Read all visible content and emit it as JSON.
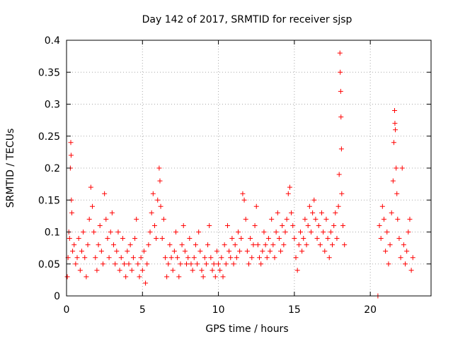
{
  "colors": {
    "series": "#ff0000",
    "grid": "#a8a8a8",
    "axis": "#000000"
  },
  "chart_data": {
    "type": "scatter",
    "title": "Day 142 of 2017, SRMTID for receiver sjsp",
    "xlabel": "GPS time / hours",
    "ylabel": "SRMTID / TECUs",
    "xlim": [
      0,
      24
    ],
    "ylim": [
      0,
      0.4
    ],
    "grid": true,
    "marker": "+",
    "xticks": [
      0,
      5,
      10,
      15,
      20
    ],
    "xtick_labels": [
      "0",
      "5",
      "10",
      "15",
      "20"
    ],
    "yticks": [
      0,
      0.05,
      0.1,
      0.15,
      0.2,
      0.25,
      0.3,
      0.35,
      0.4
    ],
    "ytick_labels": [
      "0",
      "0.05",
      "0.1",
      "0.15",
      "0.2",
      "0.25",
      "0.3",
      "0.35",
      "0.4"
    ],
    "series": [
      {
        "name": "SRMTID",
        "points": [
          [
            0.05,
            0.03
          ],
          [
            0.1,
            0.06
          ],
          [
            0.15,
            0.1
          ],
          [
            0.2,
            0.09
          ],
          [
            0.25,
            0.2
          ],
          [
            0.28,
            0.24
          ],
          [
            0.3,
            0.22
          ],
          [
            0.32,
            0.15
          ],
          [
            0.35,
            0.13
          ],
          [
            0.4,
            0.07
          ],
          [
            0.5,
            0.08
          ],
          [
            0.6,
            0.05
          ],
          [
            0.7,
            0.06
          ],
          [
            0.8,
            0.09
          ],
          [
            0.9,
            0.04
          ],
          [
            1.0,
            0.07
          ],
          [
            1.1,
            0.1
          ],
          [
            1.2,
            0.06
          ],
          [
            1.3,
            0.03
          ],
          [
            1.4,
            0.08
          ],
          [
            1.5,
            0.12
          ],
          [
            1.6,
            0.17
          ],
          [
            1.7,
            0.14
          ],
          [
            1.8,
            0.1
          ],
          [
            1.9,
            0.06
          ],
          [
            2.0,
            0.04
          ],
          [
            2.1,
            0.08
          ],
          [
            2.2,
            0.11
          ],
          [
            2.3,
            0.07
          ],
          [
            2.4,
            0.05
          ],
          [
            2.5,
            0.16
          ],
          [
            2.6,
            0.12
          ],
          [
            2.7,
            0.09
          ],
          [
            2.8,
            0.06
          ],
          [
            2.9,
            0.1
          ],
          [
            3.0,
            0.13
          ],
          [
            3.1,
            0.08
          ],
          [
            3.2,
            0.05
          ],
          [
            3.3,
            0.07
          ],
          [
            3.4,
            0.1
          ],
          [
            3.5,
            0.04
          ],
          [
            3.6,
            0.06
          ],
          [
            3.7,
            0.09
          ],
          [
            3.8,
            0.05
          ],
          [
            3.9,
            0.03
          ],
          [
            4.0,
            0.07
          ],
          [
            4.1,
            0.05
          ],
          [
            4.2,
            0.08
          ],
          [
            4.3,
            0.04
          ],
          [
            4.4,
            0.06
          ],
          [
            4.5,
            0.09
          ],
          [
            4.6,
            0.12
          ],
          [
            4.7,
            0.05
          ],
          [
            4.8,
            0.03
          ],
          [
            4.9,
            0.06
          ],
          [
            5.0,
            0.04
          ],
          [
            5.1,
            0.07
          ],
          [
            5.2,
            0.02
          ],
          [
            5.3,
            0.05
          ],
          [
            5.4,
            0.08
          ],
          [
            5.5,
            0.1
          ],
          [
            5.6,
            0.13
          ],
          [
            5.7,
            0.16
          ],
          [
            5.8,
            0.11
          ],
          [
            5.9,
            0.09
          ],
          [
            6.0,
            0.15
          ],
          [
            6.1,
            0.2
          ],
          [
            6.15,
            0.18
          ],
          [
            6.2,
            0.14
          ],
          [
            6.3,
            0.09
          ],
          [
            6.4,
            0.12
          ],
          [
            6.5,
            0.06
          ],
          [
            6.6,
            0.03
          ],
          [
            6.7,
            0.05
          ],
          [
            6.8,
            0.08
          ],
          [
            6.9,
            0.06
          ],
          [
            7.0,
            0.04
          ],
          [
            7.1,
            0.07
          ],
          [
            7.2,
            0.1
          ],
          [
            7.3,
            0.06
          ],
          [
            7.4,
            0.03
          ],
          [
            7.5,
            0.05
          ],
          [
            7.6,
            0.08
          ],
          [
            7.7,
            0.11
          ],
          [
            7.8,
            0.07
          ],
          [
            7.9,
            0.05
          ],
          [
            8.0,
            0.06
          ],
          [
            8.1,
            0.09
          ],
          [
            8.2,
            0.05
          ],
          [
            8.3,
            0.04
          ],
          [
            8.4,
            0.06
          ],
          [
            8.5,
            0.08
          ],
          [
            8.6,
            0.05
          ],
          [
            8.7,
            0.1
          ],
          [
            8.8,
            0.07
          ],
          [
            8.9,
            0.04
          ],
          [
            9.0,
            0.03
          ],
          [
            9.1,
            0.06
          ],
          [
            9.2,
            0.05
          ],
          [
            9.3,
            0.08
          ],
          [
            9.4,
            0.11
          ],
          [
            9.5,
            0.06
          ],
          [
            9.6,
            0.04
          ],
          [
            9.7,
            0.05
          ],
          [
            9.8,
            0.03
          ],
          [
            9.9,
            0.07
          ],
          [
            10.0,
            0.05
          ],
          [
            10.1,
            0.04
          ],
          [
            10.2,
            0.06
          ],
          [
            10.3,
            0.03
          ],
          [
            10.4,
            0.08
          ],
          [
            10.5,
            0.05
          ],
          [
            10.6,
            0.11
          ],
          [
            10.7,
            0.07
          ],
          [
            10.8,
            0.06
          ],
          [
            10.9,
            0.09
          ],
          [
            11.0,
            0.05
          ],
          [
            11.1,
            0.08
          ],
          [
            11.2,
            0.06
          ],
          [
            11.3,
            0.1
          ],
          [
            11.4,
            0.07
          ],
          [
            11.5,
            0.09
          ],
          [
            11.6,
            0.16
          ],
          [
            11.7,
            0.15
          ],
          [
            11.8,
            0.12
          ],
          [
            11.9,
            0.07
          ],
          [
            12.0,
            0.05
          ],
          [
            12.1,
            0.09
          ],
          [
            12.2,
            0.06
          ],
          [
            12.3,
            0.08
          ],
          [
            12.4,
            0.11
          ],
          [
            12.5,
            0.14
          ],
          [
            12.6,
            0.08
          ],
          [
            12.7,
            0.06
          ],
          [
            12.8,
            0.05
          ],
          [
            12.9,
            0.07
          ],
          [
            13.0,
            0.1
          ],
          [
            13.1,
            0.08
          ],
          [
            13.2,
            0.06
          ],
          [
            13.3,
            0.09
          ],
          [
            13.4,
            0.07
          ],
          [
            13.5,
            0.12
          ],
          [
            13.6,
            0.08
          ],
          [
            13.7,
            0.06
          ],
          [
            13.8,
            0.1
          ],
          [
            13.9,
            0.13
          ],
          [
            14.0,
            0.09
          ],
          [
            14.1,
            0.07
          ],
          [
            14.2,
            0.11
          ],
          [
            14.3,
            0.08
          ],
          [
            14.4,
            0.1
          ],
          [
            14.5,
            0.12
          ],
          [
            14.6,
            0.16
          ],
          [
            14.7,
            0.17
          ],
          [
            14.8,
            0.13
          ],
          [
            14.9,
            0.11
          ],
          [
            15.0,
            0.09
          ],
          [
            15.1,
            0.06
          ],
          [
            15.2,
            0.04
          ],
          [
            15.3,
            0.08
          ],
          [
            15.4,
            0.1
          ],
          [
            15.5,
            0.07
          ],
          [
            15.6,
            0.09
          ],
          [
            15.7,
            0.12
          ],
          [
            15.8,
            0.08
          ],
          [
            15.9,
            0.11
          ],
          [
            16.0,
            0.14
          ],
          [
            16.1,
            0.1
          ],
          [
            16.2,
            0.13
          ],
          [
            16.3,
            0.15
          ],
          [
            16.4,
            0.12
          ],
          [
            16.5,
            0.09
          ],
          [
            16.6,
            0.11
          ],
          [
            16.7,
            0.08
          ],
          [
            16.8,
            0.13
          ],
          [
            16.9,
            0.1
          ],
          [
            17.0,
            0.07
          ],
          [
            17.1,
            0.12
          ],
          [
            17.2,
            0.09
          ],
          [
            17.3,
            0.06
          ],
          [
            17.4,
            0.1
          ],
          [
            17.5,
            0.08
          ],
          [
            17.6,
            0.11
          ],
          [
            17.7,
            0.13
          ],
          [
            17.8,
            0.09
          ],
          [
            17.9,
            0.14
          ],
          [
            17.95,
            0.19
          ],
          [
            18.0,
            0.38
          ],
          [
            18.02,
            0.35
          ],
          [
            18.05,
            0.32
          ],
          [
            18.07,
            0.28
          ],
          [
            18.1,
            0.23
          ],
          [
            18.12,
            0.16
          ],
          [
            18.2,
            0.11
          ],
          [
            18.3,
            0.08
          ],
          [
            20.5,
            0.0
          ],
          [
            20.6,
            0.11
          ],
          [
            20.7,
            0.09
          ],
          [
            20.8,
            0.14
          ],
          [
            20.9,
            0.12
          ],
          [
            21.0,
            0.07
          ],
          [
            21.1,
            0.1
          ],
          [
            21.2,
            0.05
          ],
          [
            21.3,
            0.08
          ],
          [
            21.4,
            0.13
          ],
          [
            21.5,
            0.18
          ],
          [
            21.55,
            0.24
          ],
          [
            21.6,
            0.29
          ],
          [
            21.62,
            0.27
          ],
          [
            21.65,
            0.26
          ],
          [
            21.7,
            0.2
          ],
          [
            21.75,
            0.16
          ],
          [
            21.8,
            0.12
          ],
          [
            21.9,
            0.09
          ],
          [
            22.0,
            0.06
          ],
          [
            22.1,
            0.2
          ],
          [
            22.2,
            0.08
          ],
          [
            22.3,
            0.05
          ],
          [
            22.4,
            0.07
          ],
          [
            22.5,
            0.1
          ],
          [
            22.6,
            0.12
          ],
          [
            22.7,
            0.04
          ],
          [
            22.8,
            0.06
          ]
        ]
      }
    ]
  }
}
